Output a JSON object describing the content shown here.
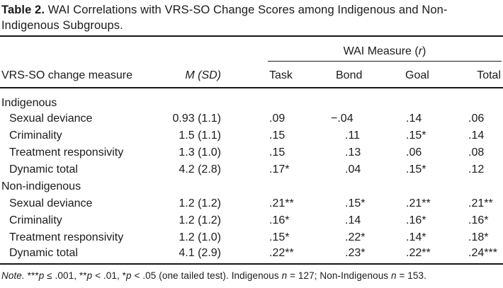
{
  "title": {
    "label": "Table 2.",
    "line1": "WAI Correlations with VRS-SO Change Scores among Indigenous and Non-",
    "line2": "Indigenous Subgroups."
  },
  "table": {
    "spanner": {
      "prefix": "WAI Measure (",
      "italic_r": "r",
      "suffix": ")"
    },
    "columns": {
      "measure": "VRS-SO change measure",
      "msd": "M (SD)",
      "task": "Task",
      "bond": "Bond",
      "goal": "Goal",
      "total": "Total"
    },
    "groups": [
      {
        "label": "Indigenous",
        "rows": [
          {
            "measure": "Sexual deviance",
            "msd": "0.93 (1.1)",
            "task": ".09",
            "bond": "−.04",
            "goal": ".14",
            "total": ".06"
          },
          {
            "measure": "Criminality",
            "msd": "1.5 (1.1)",
            "task": ".15",
            "bond": ".11",
            "goal": ".15*",
            "total": ".14"
          },
          {
            "measure": "Treatment responsivity",
            "msd": "1.3 (1.0)",
            "task": ".15",
            "bond": ".13",
            "goal": ".06",
            "total": ".08"
          },
          {
            "measure": "Dynamic total",
            "msd": "4.2 (2.8)",
            "task": ".17*",
            "bond": ".04",
            "goal": ".15*",
            "total": ".12"
          }
        ]
      },
      {
        "label": "Non-indigenous",
        "rows": [
          {
            "measure": "Sexual deviance",
            "msd": "1.2 (1.2)",
            "task": ".21**",
            "bond": ".15*",
            "goal": ".21**",
            "total": ".21**"
          },
          {
            "measure": "Criminality",
            "msd": "1.2 (1.2)",
            "task": ".16*",
            "bond": ".14",
            "goal": ".16*",
            "total": ".16*"
          },
          {
            "measure": "Treatment responsivity",
            "msd": "1.2 (1.0)",
            "task": ".15*",
            "bond": ".22*",
            "goal": ".14*",
            "total": ".18*"
          },
          {
            "measure": "Dynamic total",
            "msd": "4.1 (2.9)",
            "task": ".22**",
            "bond": ".23*",
            "goal": ".22**",
            "total": ".24***"
          }
        ]
      }
    ]
  },
  "note": {
    "parts": [
      {
        "text": "Note."
      },
      {
        "text": " ***"
      },
      {
        "text": "p"
      },
      {
        "text": " ≤ .001, **"
      },
      {
        "text": "p"
      },
      {
        "text": " < .01, *"
      },
      {
        "text": "p"
      },
      {
        "text": " < .05 (one tailed test). Indigenous "
      },
      {
        "text": "n"
      },
      {
        "text": " = 127; Non-Indigenous "
      },
      {
        "text": "n"
      },
      {
        "text": " = 153."
      }
    ]
  }
}
